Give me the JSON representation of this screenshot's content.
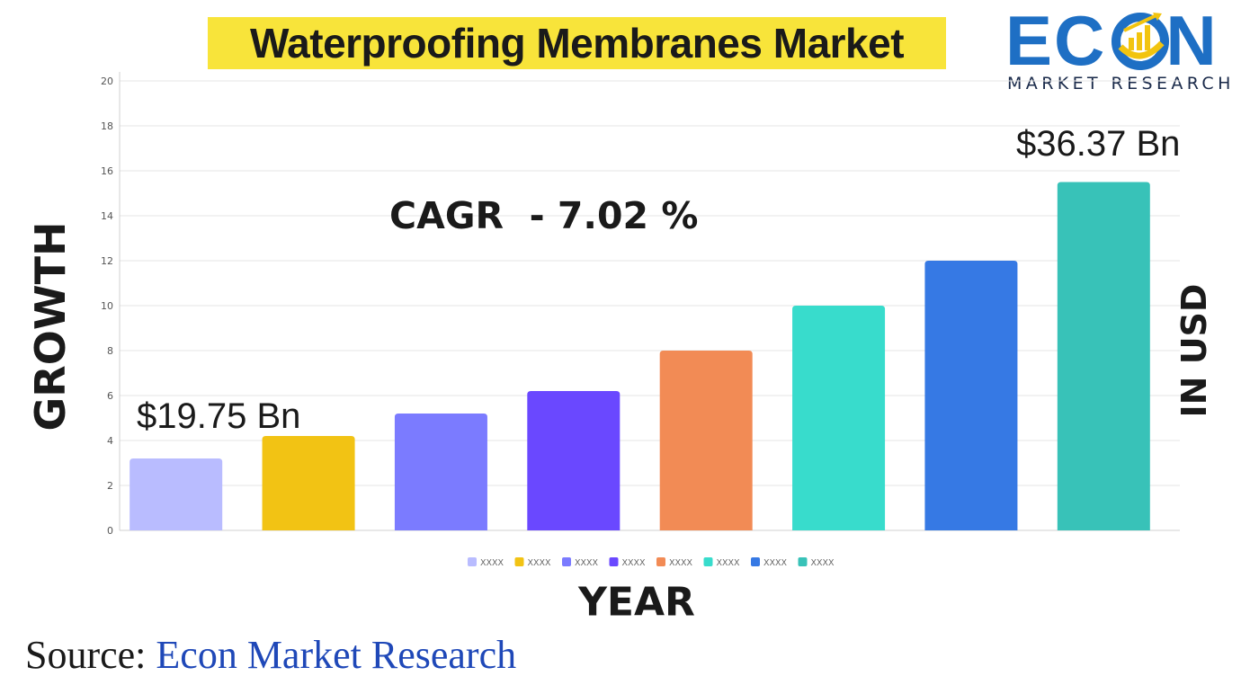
{
  "title": "Waterproofing Membranes Market",
  "logo": {
    "word_left": "EC",
    "word_right": "N",
    "subtitle": "MARKET RESEARCH"
  },
  "annotations": {
    "cagr": "CAGR  - 7.02 %",
    "start_value": "$19.75 Bn",
    "end_value": "$36.37 Bn"
  },
  "axis_labels": {
    "left": "GROWTH",
    "right": "IN USD",
    "bottom": "YEAR"
  },
  "source": {
    "lead": "Source:",
    "name": "Econ Market Research"
  },
  "colors": {
    "title_highlight": "#f8e43a",
    "logo_blue": "#1e6fc4",
    "logo_yellow": "#f2c40f",
    "source_blue": "#1f48b8"
  },
  "chart_data": {
    "type": "bar",
    "categories": [
      "XXXX",
      "XXXX",
      "XXXX",
      "XXXX",
      "XXXX",
      "XXXX",
      "XXXX",
      "XXXX"
    ],
    "values": [
      3.2,
      4.2,
      5.2,
      6.2,
      8.0,
      10.0,
      12.0,
      15.5
    ],
    "bar_colors": [
      "#b9bcff",
      "#f2c314",
      "#7b7bff",
      "#6a48ff",
      "#f28b55",
      "#38dccc",
      "#3679e4",
      "#38c2b8"
    ],
    "ylim": [
      0,
      20
    ],
    "yticks": [
      0,
      2,
      4,
      6,
      8,
      10,
      12,
      14,
      16,
      18,
      20
    ],
    "grid": true,
    "legend": "bottom",
    "legend_entries": [
      "XXXX",
      "XXXX",
      "XXXX",
      "XXXX",
      "XXXX",
      "XXXX",
      "XXXX",
      "XXXX"
    ]
  }
}
